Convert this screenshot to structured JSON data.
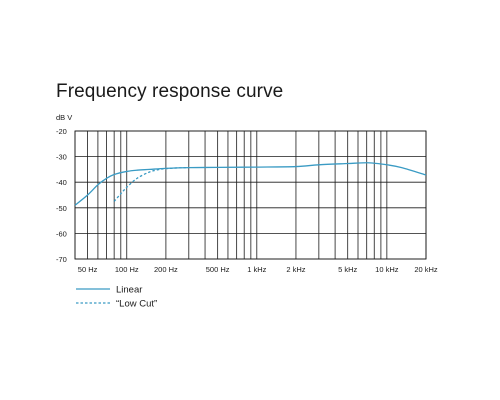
{
  "chart_data": {
    "type": "line",
    "title": "Frequency response curve",
    "ylabel": "dB V",
    "xlabel": "",
    "x_scale": "log",
    "xlim": [
      40,
      20000
    ],
    "ylim": [
      -70,
      -20
    ],
    "grid": true,
    "y_ticks": [
      -20,
      -30,
      -40,
      -50,
      -60,
      -70
    ],
    "y_tick_labels": [
      "-20",
      "-30",
      "-40",
      "-50",
      "-60",
      "-70"
    ],
    "x_ticks": [
      50,
      100,
      200,
      500,
      1000,
      2000,
      5000,
      10000,
      20000
    ],
    "x_tick_labels": [
      "50 Hz",
      "100 Hz",
      "200 Hz",
      "500 Hz",
      "1 kHz",
      "2 kHz",
      "5 kHz",
      "10 kHz",
      "20 kHz"
    ],
    "legend_position": "bottom-left",
    "series": [
      {
        "name": "Linear",
        "color": "#3a9bc4",
        "style": "solid",
        "x": [
          40,
          50,
          60,
          70,
          80,
          100,
          120,
          150,
          200,
          300,
          500,
          1000,
          2000,
          3000,
          5000,
          7000,
          8000,
          10000,
          13000,
          20000
        ],
        "y": [
          -49,
          -45,
          -41,
          -38.5,
          -37,
          -35.8,
          -35.3,
          -35,
          -34.6,
          -34.3,
          -34.2,
          -34.1,
          -33.9,
          -33.2,
          -32.7,
          -32.4,
          -32.6,
          -33.2,
          -34.3,
          -37.2
        ]
      },
      {
        "name": "“Low Cut”",
        "color": "#3a9bc4",
        "style": "dashed",
        "x": [
          80,
          90,
          100,
          120,
          150,
          180,
          200,
          250,
          300
        ],
        "y": [
          -47.5,
          -44.5,
          -42,
          -38.5,
          -36,
          -35,
          -34.7,
          -34.4,
          -34.3
        ]
      }
    ]
  }
}
